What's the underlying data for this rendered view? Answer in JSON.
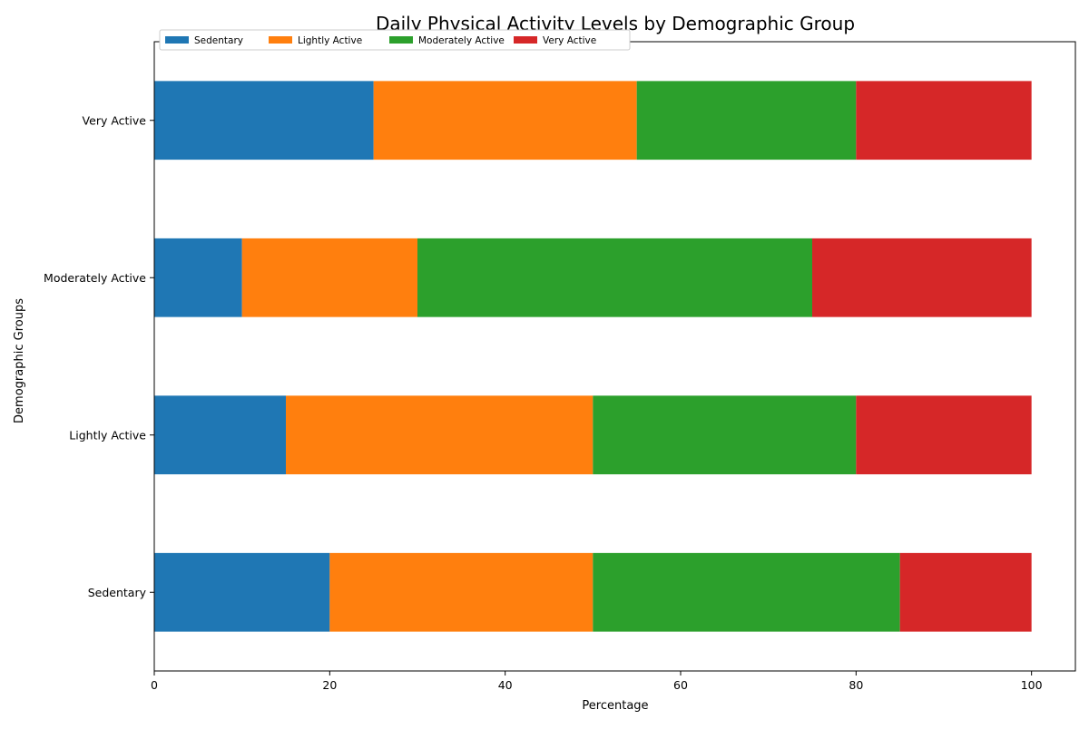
{
  "chart_data": {
    "type": "bar",
    "orientation": "horizontal",
    "stacked": true,
    "title": "Daily Physical Activity Levels by Demographic Group",
    "xlabel": "Percentage",
    "ylabel": "Demographic Groups",
    "xlim": [
      0,
      105
    ],
    "xticks": [
      0,
      20,
      40,
      60,
      80,
      100
    ],
    "grid": false,
    "legend_position": "top-left",
    "categories": [
      "Sedentary",
      "Lightly Active",
      "Moderately Active",
      "Very Active"
    ],
    "series": [
      {
        "name": "Sedentary",
        "color": "#1f77b4",
        "values": [
          20,
          15,
          10,
          25
        ]
      },
      {
        "name": "Lightly Active",
        "color": "#ff7f0e",
        "values": [
          30,
          35,
          20,
          30
        ]
      },
      {
        "name": "Moderately Active",
        "color": "#2ca02c",
        "values": [
          35,
          30,
          45,
          25
        ]
      },
      {
        "name": "Very Active",
        "color": "#d62728",
        "values": [
          15,
          20,
          25,
          20
        ]
      }
    ]
  }
}
